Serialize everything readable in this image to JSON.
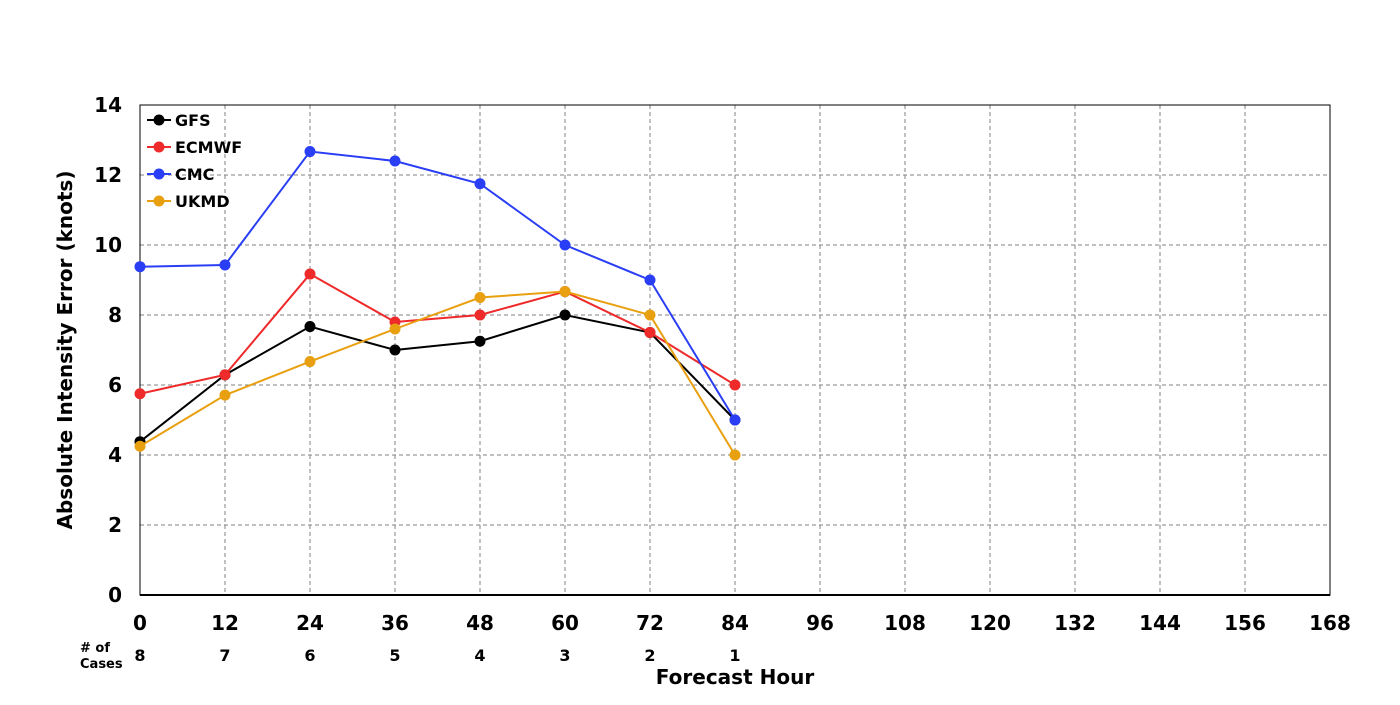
{
  "chart_data": {
    "type": "line",
    "title": "",
    "xlabel": "Forecast Hour",
    "ylabel": "Absolute Intensity Error (knots)",
    "xlim": [
      0,
      168
    ],
    "ylim": [
      0,
      14
    ],
    "x_ticks": [
      "0",
      "12",
      "24",
      "36",
      "48",
      "60",
      "72",
      "84",
      "96",
      "108",
      "120",
      "132",
      "144",
      "156",
      "168"
    ],
    "y_ticks": [
      "0",
      "2",
      "4",
      "6",
      "8",
      "10",
      "12",
      "14"
    ],
    "grid": true,
    "legend_position": "top-left",
    "cases_label": [
      "# of",
      "Cases"
    ],
    "cases": [
      {
        "x": 0,
        "label": "8"
      },
      {
        "x": 12,
        "label": "7"
      },
      {
        "x": 24,
        "label": "6"
      },
      {
        "x": 36,
        "label": "5"
      },
      {
        "x": 48,
        "label": "4"
      },
      {
        "x": 60,
        "label": "3"
      },
      {
        "x": 72,
        "label": "2"
      },
      {
        "x": 84,
        "label": "1"
      }
    ],
    "x": [
      0,
      12,
      24,
      36,
      48,
      60,
      72,
      84
    ],
    "series": [
      {
        "name": "GFS",
        "color": "#000000",
        "values": [
          4.38,
          6.29,
          7.67,
          7.0,
          7.25,
          8.0,
          7.5,
          5.0
        ]
      },
      {
        "name": "ECMWF",
        "color": "#ee2a2a",
        "values": [
          5.75,
          6.29,
          9.17,
          7.8,
          8.0,
          8.67,
          7.5,
          6.0
        ]
      },
      {
        "name": "CMC",
        "color": "#2a3ff5",
        "values": [
          9.38,
          9.43,
          12.67,
          12.4,
          11.75,
          10.0,
          9.0,
          5.0
        ]
      },
      {
        "name": "UKMD",
        "color": "#e8a010",
        "values": [
          4.25,
          5.71,
          6.67,
          7.6,
          8.5,
          8.67,
          8.0,
          4.0
        ]
      }
    ]
  }
}
